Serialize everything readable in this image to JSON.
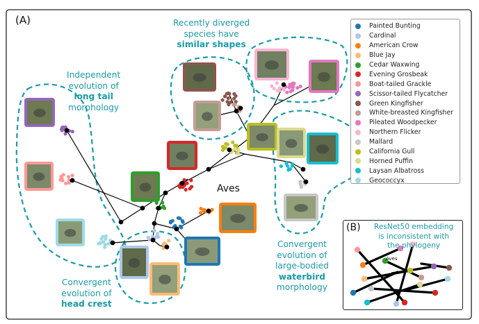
{
  "panel_a_label": "(A)",
  "panel_b_label": "(B)",
  "root_label": "Aves",
  "inset_root_label": "Aves",
  "inset_caption": [
    "ResNet50 embedding",
    "is inconsistent with",
    "the phylogeny"
  ],
  "annotations": {
    "long_tail": {
      "lines": [
        "Independent",
        "evolution of"
      ],
      "bold": "long tail",
      "tail": "morphology"
    },
    "similar_shapes": {
      "lines": [
        "Recently diverged",
        "species have"
      ],
      "bold": "similar shapes",
      "tail": ""
    },
    "waterbird": {
      "lines": [
        "Convergent",
        "evolution of",
        "large-bodied"
      ],
      "bold": "waterbird",
      "tail": "morphology"
    },
    "head_crest": {
      "lines": [
        "Convergent",
        "evolution of"
      ],
      "bold": "head crest",
      "tail": ""
    }
  },
  "legend": [
    {
      "name": "Painted Bunting",
      "color": "#1f77b4"
    },
    {
      "name": "Cardinal",
      "color": "#aec7e8"
    },
    {
      "name": "American Crow",
      "color": "#ff7f0e"
    },
    {
      "name": "Blue Jay",
      "color": "#ffbb78"
    },
    {
      "name": "Cedar Waxwing",
      "color": "#2ca02c"
    },
    {
      "name": "Evening Grosbeak",
      "color": "#d62728"
    },
    {
      "name": "Boat-tailed Grackle",
      "color": "#ff9896"
    },
    {
      "name": "Scissor-tailed Flycatcher",
      "color": "#9467bd"
    },
    {
      "name": "Green Kingfisher",
      "color": "#8c564b"
    },
    {
      "name": "White-breasted Kingfisher",
      "color": "#c49c94"
    },
    {
      "name": "Pileated Woodpecker",
      "color": "#e377c2"
    },
    {
      "name": "Northern Flicker",
      "color": "#f7b6d2"
    },
    {
      "name": "Mallard",
      "color": "#c7c7c7"
    },
    {
      "name": "California Gull",
      "color": "#bcbd22"
    },
    {
      "name": "Horned Puffin",
      "color": "#dbdb8d"
    },
    {
      "name": "Laysan Albatross",
      "color": "#17becf"
    },
    {
      "name": "Geococcyx",
      "color": "#9edae5"
    }
  ],
  "colors": {
    "annotation": "#1a9aa5",
    "dashed_outline": "#1a9aa5",
    "branch": "#000000"
  }
}
